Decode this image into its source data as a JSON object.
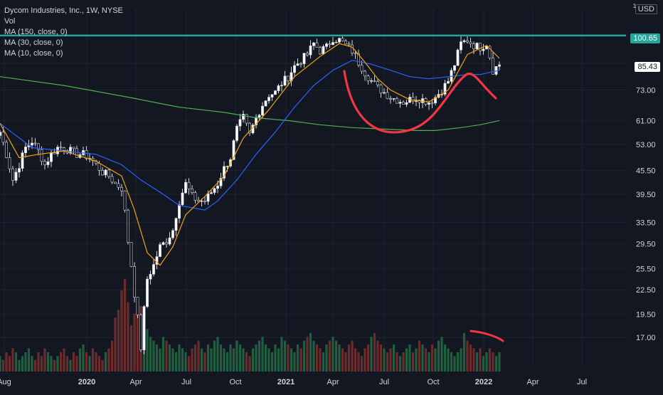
{
  "legend": {
    "title": "Dycom Industries, Inc., 1W, NYSE",
    "vol": "Vol",
    "ma150": "MA (150, close, 0)",
    "ma30": "MA (30, close, 0)",
    "ma10": "MA (10, close, 0)"
  },
  "axis": {
    "currency": "USD",
    "currency_index": "1",
    "resistance_label": "100.65",
    "last_price_label": "85.43"
  },
  "colors": {
    "background": "#131722",
    "up": "#ffffff",
    "down": "#0b0e14",
    "resistance": "#26a69a",
    "ma150": "#4caf50",
    "ma30": "#2962ff",
    "ma10": "#f0a30a",
    "drawing": "#f23645",
    "vol_up": "#1f5f3f",
    "vol_down": "#6d2c2c",
    "grid": "#1f2330",
    "text": "#d1d4dc"
  },
  "chart_data": {
    "type": "candlestick",
    "scale": "log",
    "ylim": [
      14.5,
      118
    ],
    "y_ticks": [
      "100.65",
      "85.43",
      "73.00",
      "61.00",
      "53.00",
      "45.50",
      "39.50",
      "33.50",
      "29.50",
      "25.50",
      "22.50",
      "19.50",
      "17.00"
    ],
    "x_ticks": [
      "Aug",
      "2020",
      "Apr",
      "Jul",
      "Oct",
      "2021",
      "Apr",
      "Jul",
      "Oct",
      "2022",
      "Apr",
      "Jul"
    ],
    "resistance": 100.65,
    "last_price": 85.43,
    "price_anchors": [
      [
        0,
        57
      ],
      [
        2,
        50
      ],
      [
        4,
        43
      ],
      [
        6,
        47
      ],
      [
        8,
        52
      ],
      [
        10,
        54
      ],
      [
        12,
        51
      ],
      [
        14,
        47
      ],
      [
        16,
        50
      ],
      [
        18,
        52
      ],
      [
        20,
        52
      ],
      [
        22,
        51
      ],
      [
        24,
        50
      ],
      [
        26,
        50
      ],
      [
        28,
        49
      ],
      [
        30,
        47
      ],
      [
        32,
        45
      ],
      [
        34,
        44
      ],
      [
        36,
        42
      ],
      [
        38,
        41
      ],
      [
        40,
        30
      ],
      [
        42,
        22
      ],
      [
        44,
        16
      ],
      [
        46,
        24
      ],
      [
        48,
        26
      ],
      [
        50,
        29
      ],
      [
        52,
        30
      ],
      [
        54,
        32
      ],
      [
        56,
        38
      ],
      [
        58,
        42
      ],
      [
        60,
        39
      ],
      [
        62,
        38
      ],
      [
        64,
        38
      ],
      [
        66,
        40
      ],
      [
        68,
        42
      ],
      [
        70,
        46
      ],
      [
        72,
        49
      ],
      [
        74,
        58
      ],
      [
        76,
        62
      ],
      [
        78,
        56
      ],
      [
        80,
        62
      ],
      [
        82,
        67
      ],
      [
        84,
        71
      ],
      [
        86,
        72
      ],
      [
        88,
        76
      ],
      [
        90,
        79
      ],
      [
        92,
        84
      ],
      [
        94,
        87
      ],
      [
        96,
        90
      ],
      [
        98,
        96
      ],
      [
        100,
        92
      ],
      [
        102,
        94
      ],
      [
        104,
        99
      ],
      [
        106,
        98
      ],
      [
        108,
        95
      ],
      [
        110,
        92
      ],
      [
        112,
        86
      ],
      [
        114,
        81
      ],
      [
        116,
        77
      ],
      [
        118,
        74
      ],
      [
        120,
        72
      ],
      [
        122,
        70
      ],
      [
        124,
        69
      ],
      [
        126,
        68
      ],
      [
        128,
        69
      ],
      [
        130,
        70
      ],
      [
        132,
        69
      ],
      [
        134,
        68
      ],
      [
        136,
        70
      ],
      [
        138,
        73
      ],
      [
        140,
        77
      ],
      [
        142,
        85
      ],
      [
        144,
        96
      ],
      [
        146,
        98
      ],
      [
        148,
        95
      ],
      [
        150,
        94
      ],
      [
        152,
        96
      ],
      [
        154,
        82
      ],
      [
        156,
        85
      ]
    ],
    "ma10": [
      [
        0,
        60
      ],
      [
        6,
        49
      ],
      [
        12,
        50
      ],
      [
        20,
        51
      ],
      [
        30,
        48
      ],
      [
        38,
        44
      ],
      [
        42,
        36
      ],
      [
        46,
        28
      ],
      [
        50,
        26
      ],
      [
        54,
        29
      ],
      [
        58,
        35
      ],
      [
        64,
        39
      ],
      [
        70,
        44
      ],
      [
        76,
        55
      ],
      [
        84,
        65
      ],
      [
        92,
        79
      ],
      [
        100,
        89
      ],
      [
        106,
        96
      ],
      [
        110,
        94
      ],
      [
        114,
        86
      ],
      [
        118,
        78
      ],
      [
        122,
        73
      ],
      [
        128,
        69
      ],
      [
        134,
        68
      ],
      [
        140,
        73
      ],
      [
        146,
        90
      ],
      [
        152,
        95
      ],
      [
        156,
        88
      ]
    ],
    "ma30": [
      [
        0,
        60
      ],
      [
        10,
        52
      ],
      [
        20,
        51
      ],
      [
        30,
        50
      ],
      [
        38,
        47
      ],
      [
        44,
        43
      ],
      [
        50,
        40
      ],
      [
        56,
        37
      ],
      [
        60,
        36.5
      ],
      [
        64,
        36
      ],
      [
        68,
        38
      ],
      [
        74,
        43
      ],
      [
        80,
        50
      ],
      [
        86,
        57
      ],
      [
        92,
        66
      ],
      [
        98,
        75
      ],
      [
        104,
        82
      ],
      [
        110,
        87
      ],
      [
        116,
        85
      ],
      [
        122,
        82
      ],
      [
        128,
        79
      ],
      [
        134,
        78
      ],
      [
        140,
        79
      ],
      [
        146,
        80
      ],
      [
        150,
        80
      ],
      [
        156,
        82
      ]
    ],
    "ma150": [
      [
        0,
        79
      ],
      [
        20,
        75
      ],
      [
        40,
        70
      ],
      [
        56,
        66
      ],
      [
        70,
        64
      ],
      [
        80,
        62
      ],
      [
        90,
        61
      ],
      [
        100,
        59.5
      ],
      [
        110,
        58.5
      ],
      [
        120,
        58
      ],
      [
        130,
        57.5
      ],
      [
        136,
        57.5
      ],
      [
        144,
        58.5
      ],
      [
        150,
        59.5
      ],
      [
        156,
        61
      ]
    ],
    "volume": [
      4,
      3,
      5,
      4,
      6,
      5,
      3,
      4,
      5,
      6,
      4,
      3,
      5,
      4,
      6,
      5,
      4,
      3,
      4,
      5,
      6,
      4,
      3,
      5,
      4,
      6,
      7,
      5,
      4,
      6,
      5,
      4,
      3,
      5,
      6,
      8,
      14,
      16,
      21,
      24,
      18,
      12,
      15,
      19,
      17,
      13,
      11,
      9,
      8,
      7,
      6,
      9,
      8,
      7,
      6,
      5,
      7,
      6,
      5,
      4,
      6,
      7,
      8,
      6,
      5,
      7,
      6,
      8,
      9,
      7,
      6,
      5,
      7,
      6,
      8,
      7,
      6,
      5,
      4,
      6,
      7,
      8,
      9,
      7,
      6,
      5,
      7,
      6,
      9,
      8,
      7,
      6,
      5,
      7,
      6,
      8,
      9,
      10,
      8,
      7,
      6,
      5,
      7,
      8,
      9,
      8,
      7,
      6,
      5,
      7,
      8,
      6,
      5,
      4,
      6,
      7,
      9,
      10,
      8,
      7,
      6,
      5,
      6,
      7,
      5,
      4,
      5,
      6,
      7,
      5,
      6,
      8,
      7,
      6,
      5,
      7,
      6,
      8,
      9,
      7,
      6,
      5,
      4,
      5,
      6,
      10,
      8,
      7,
      6,
      5,
      6,
      4,
      5,
      6,
      5,
      4,
      5
    ]
  }
}
